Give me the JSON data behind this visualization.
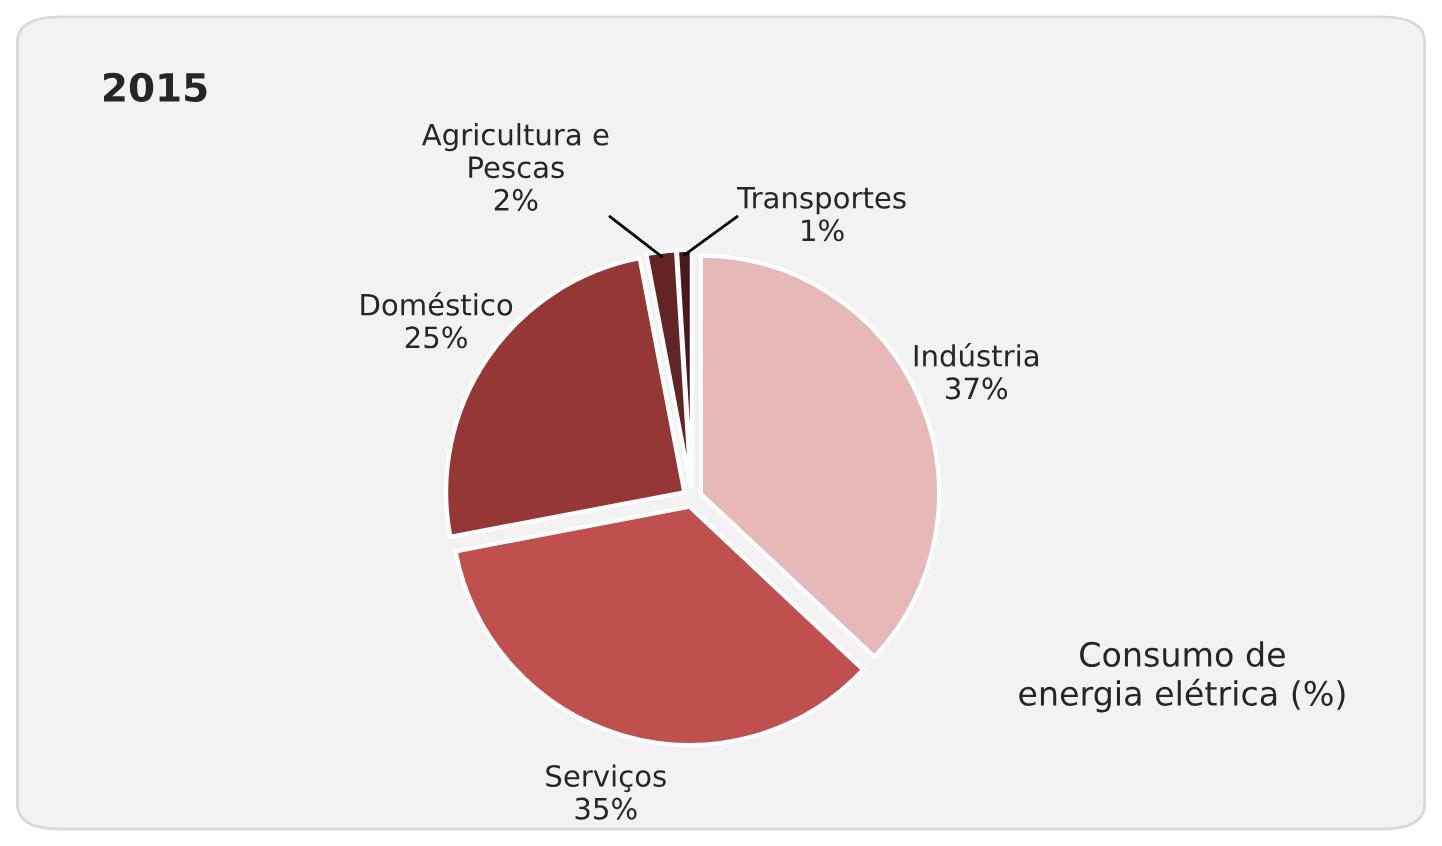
{
  "chart_data": {
    "type": "pie",
    "title": "2015",
    "categories": [
      "Indústria",
      "Serviços",
      "Doméstico",
      "Agricultura e\nPescas",
      "Transportes"
    ],
    "values": [
      37,
      35,
      25,
      2,
      1
    ],
    "value_labels": [
      "37%",
      "35%",
      "25%",
      "2%",
      "1%"
    ],
    "colors": [
      "#e6b9b8",
      "#c0504d",
      "#953735",
      "#632523",
      "#4a1a19"
    ],
    "annotations": [
      "Consumo de\nenergia elétrica (%)"
    ],
    "legend": false
  }
}
